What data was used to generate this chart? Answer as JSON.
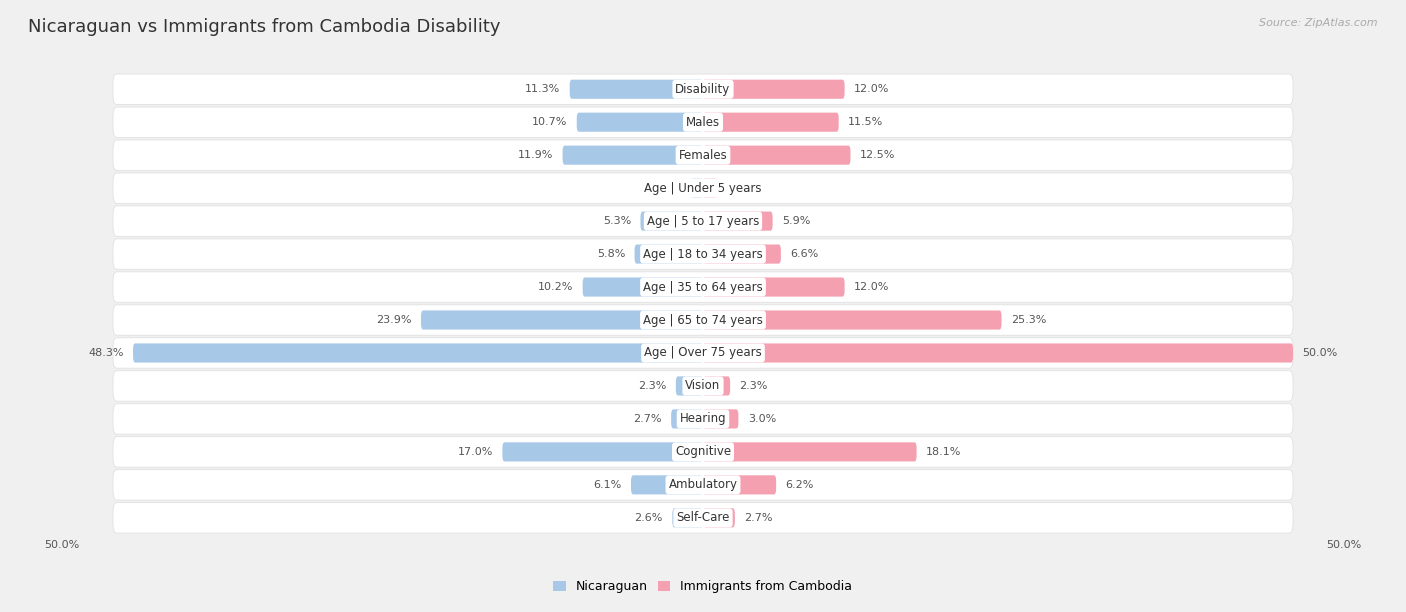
{
  "title": "Nicaraguan vs Immigrants from Cambodia Disability",
  "source": "Source: ZipAtlas.com",
  "categories": [
    "Disability",
    "Males",
    "Females",
    "Age | Under 5 years",
    "Age | 5 to 17 years",
    "Age | 18 to 34 years",
    "Age | 35 to 64 years",
    "Age | 65 to 74 years",
    "Age | Over 75 years",
    "Vision",
    "Hearing",
    "Cognitive",
    "Ambulatory",
    "Self-Care"
  ],
  "left_values": [
    11.3,
    10.7,
    11.9,
    1.1,
    5.3,
    5.8,
    10.2,
    23.9,
    48.3,
    2.3,
    2.7,
    17.0,
    6.1,
    2.6
  ],
  "right_values": [
    12.0,
    11.5,
    12.5,
    1.2,
    5.9,
    6.6,
    12.0,
    25.3,
    50.0,
    2.3,
    3.0,
    18.1,
    6.2,
    2.7
  ],
  "left_color": "#a8c8e8",
  "right_color": "#f4a0b0",
  "left_label": "Nicaraguan",
  "right_label": "Immigrants from Cambodia",
  "background_color": "#f0f0f0",
  "row_bg_color": "#ffffff",
  "max_value": 50.0,
  "title_fontsize": 13,
  "label_fontsize": 8.5,
  "value_fontsize": 8,
  "bar_height": 0.58,
  "axis_label_bottom": "50.0%"
}
